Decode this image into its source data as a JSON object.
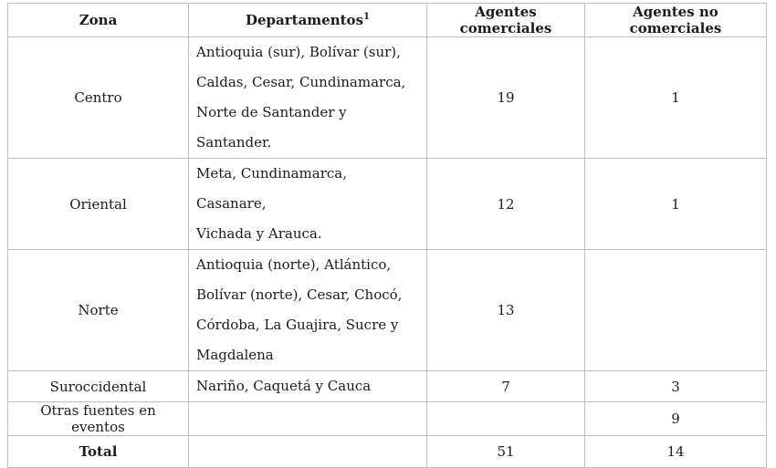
{
  "colors": {
    "border": "#bdbdbd",
    "text": "#1c1c1c",
    "background": "#ffffff"
  },
  "table": {
    "headers": [
      {
        "label": "Zona",
        "sup": ""
      },
      {
        "label": "Departamentos",
        "sup": "1"
      },
      {
        "label": "Agentes comerciales",
        "sup": ""
      },
      {
        "label": "Agentes no comerciales",
        "sup": ""
      }
    ],
    "rows": [
      {
        "zona": "Centro",
        "departamentos": "Antioquia (sur), Bolívar (sur),\nCaldas, Cesar, Cundinamarca,\nNorte de Santander y Santander.",
        "agentes_comerciales": "19",
        "agentes_no_comerciales": "1"
      },
      {
        "zona": "Oriental",
        "departamentos": "Meta, Cundinamarca, Casanare,\nVichada y Arauca.",
        "agentes_comerciales": "12",
        "agentes_no_comerciales": "1"
      },
      {
        "zona": "Norte",
        "departamentos": "Antioquia (norte), Atlántico,\nBolívar (norte), Cesar, Chocó,\nCórdoba, La Guajira, Sucre y\nMagdalena",
        "agentes_comerciales": "13",
        "agentes_no_comerciales": ""
      },
      {
        "zona": "Suroccidental",
        "departamentos": "Nariño, Caquetá y Cauca",
        "agentes_comerciales": "7",
        "agentes_no_comerciales": "3"
      },
      {
        "zona": "Otras fuentes en eventos",
        "departamentos": "",
        "agentes_comerciales": "",
        "agentes_no_comerciales": "9"
      },
      {
        "zona": "Total",
        "departamentos": "",
        "agentes_comerciales": "51",
        "agentes_no_comerciales": "14"
      }
    ]
  }
}
